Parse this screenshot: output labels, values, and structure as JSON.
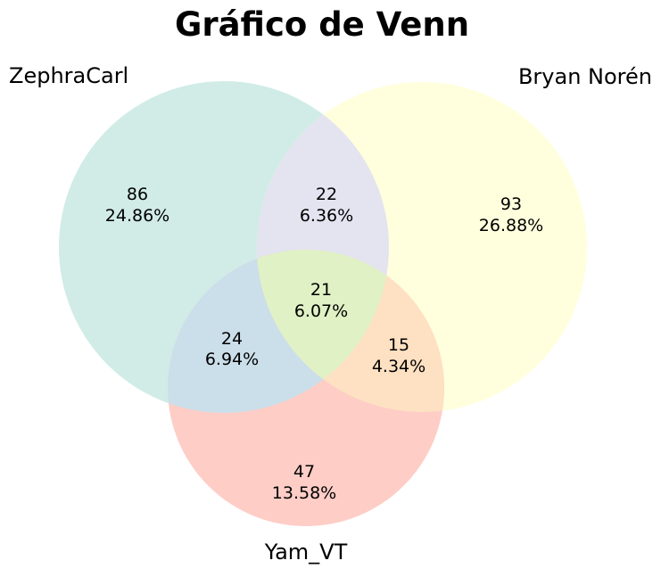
{
  "title": "Gráfico de Venn",
  "sets": [
    {
      "id": "A",
      "label": "ZephraCarl",
      "color": "#d1ece6"
    },
    {
      "id": "B",
      "label": "Bryan Norén",
      "color": "#ffffdd"
    },
    {
      "id": "C",
      "label": "Yam_VT",
      "color": "#fecdc6"
    }
  ],
  "regions": [
    {
      "id": "A_only",
      "count": "86",
      "percent": "24.86%"
    },
    {
      "id": "B_only",
      "count": "93",
      "percent": "26.88%"
    },
    {
      "id": "C_only",
      "count": "47",
      "percent": "13.58%"
    },
    {
      "id": "AB",
      "count": "22",
      "percent": "6.36%"
    },
    {
      "id": "AC",
      "count": "24",
      "percent": "6.94%"
    },
    {
      "id": "BC",
      "count": "15",
      "percent": "4.34%"
    },
    {
      "id": "ABC",
      "count": "21",
      "percent": "6.07%"
    }
  ],
  "overlap_colors": {
    "AB": "#e4e3f0",
    "AC": "#cbdfea",
    "BC": "#fee0c2",
    "ABC": "#e0f1c5"
  }
}
